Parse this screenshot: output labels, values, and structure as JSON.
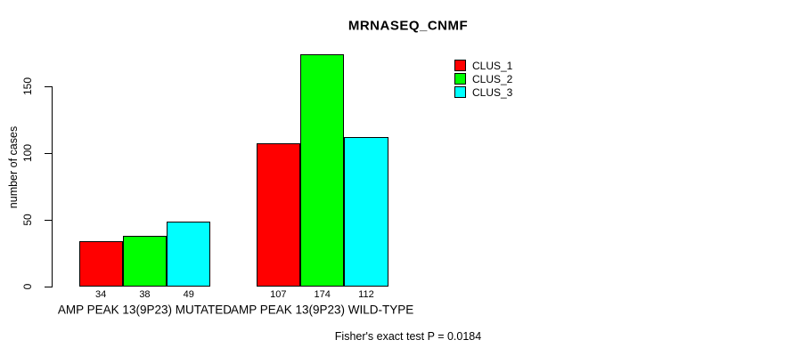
{
  "colors": {
    "background": "#ffffff",
    "axis": "#000000",
    "text": "#000000",
    "bar_border": "#000000"
  },
  "chart_data": {
    "type": "bar",
    "title": "MRNASEQ_CNMF",
    "xlabel": "",
    "ylabel": "number of cases",
    "categories": [
      "AMP PEAK 13(9P23) MUTATED",
      "AMP PEAK 13(9P23) WILD-TYPE"
    ],
    "series": [
      {
        "name": "CLUS_1",
        "color": "#ff0000",
        "values": [
          34,
          107
        ]
      },
      {
        "name": "CLUS_2",
        "color": "#00ff00",
        "values": [
          38,
          174
        ]
      },
      {
        "name": "CLUS_3",
        "color": "#00ffff",
        "values": [
          49,
          112
        ]
      }
    ],
    "bar_value_labels": [
      [
        34,
        38,
        49
      ],
      [
        107,
        174,
        112
      ]
    ],
    "yticks": [
      0,
      50,
      100,
      150
    ],
    "ylim": [
      0,
      178
    ],
    "grid": false,
    "legend": {
      "position": "top-right-inside",
      "entries": [
        "CLUS_1",
        "CLUS_2",
        "CLUS_3"
      ]
    },
    "annotation": "Fisher's exact test P = 0.0184"
  }
}
